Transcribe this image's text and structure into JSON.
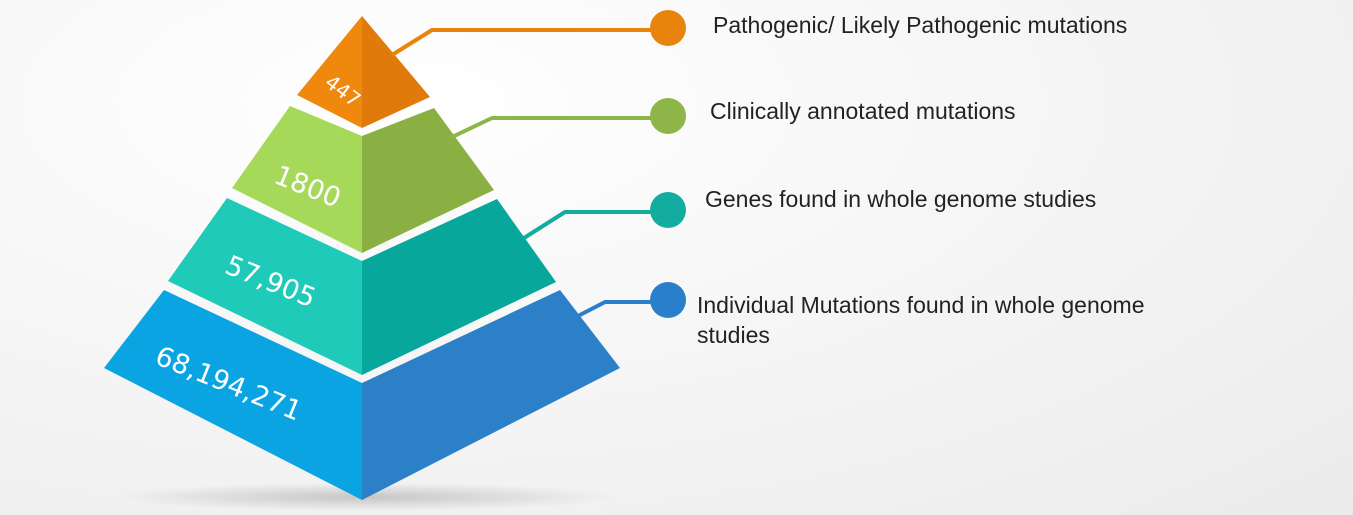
{
  "diagram": {
    "type": "pyramid",
    "tiers": [
      {
        "value": "447",
        "label": "Pathogenic/ Likely Pathogenic mutations",
        "color_light": "#f0880e",
        "color_dark": "#e07b0b",
        "connector_color": "#e8840c"
      },
      {
        "value": "1800",
        "label": "Clinically annotated mutations",
        "color_light": "#a6d95a",
        "color_dark": "#8aaf43",
        "connector_color": "#8db547"
      },
      {
        "value": "57,905",
        "label": "Genes found in whole genome studies",
        "color_light": "#1fcbb8",
        "color_dark": "#08a79c",
        "connector_color": "#12ad9f"
      },
      {
        "value": "68,194,271",
        "label": "Individual Mutations found in whole genome studies",
        "color_light": "#0ba4e2",
        "color_dark": "#2b80c8",
        "connector_color": "#2a7fca"
      }
    ]
  }
}
